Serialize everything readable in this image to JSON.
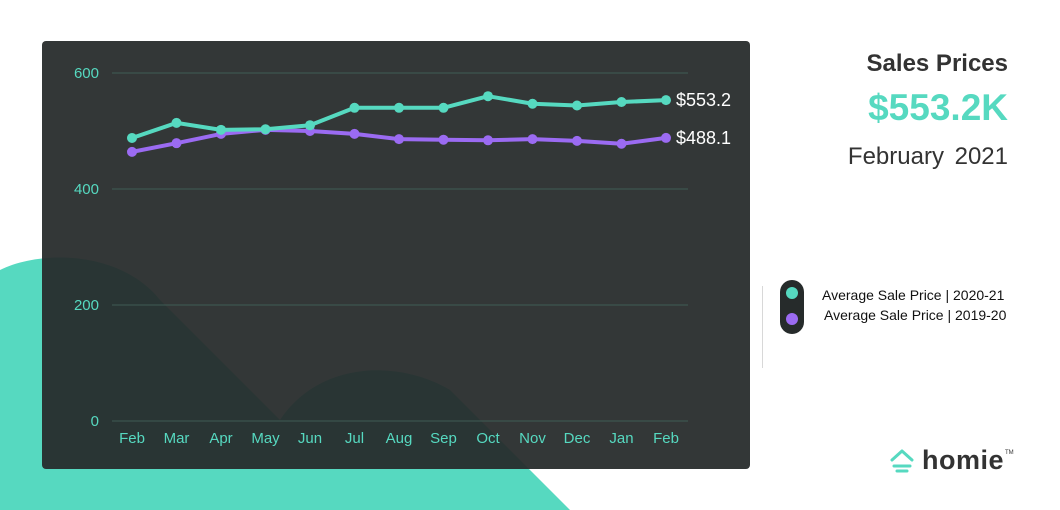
{
  "summary": {
    "title": "Sales Prices",
    "value": "$553.2K",
    "date": "February  2021"
  },
  "colors": {
    "accent_teal": "#56d9c0",
    "accent_purple": "#9b6bf2",
    "panel": "#262b2b"
  },
  "legend": {
    "items": [
      {
        "label": "Average Sale Price | 2020-21",
        "color": "#56d9c0"
      },
      {
        "label": "Average Sale Price | 2019-20",
        "color": "#9b6bf2"
      }
    ]
  },
  "brand": {
    "name": "homie",
    "mark": "TM",
    "icon": "house-icon"
  },
  "chart_data": {
    "type": "line",
    "categories": [
      "Feb",
      "Mar",
      "Apr",
      "May",
      "Jun",
      "Jul",
      "Aug",
      "Sep",
      "Oct",
      "Nov",
      "Dec",
      "Jan",
      "Feb"
    ],
    "series": [
      {
        "name": "Average Sale Price | 2020-21",
        "color": "#56d9c0",
        "values": [
          488,
          514,
          502,
          503,
          510,
          540,
          540,
          540,
          560,
          547,
          544,
          550,
          553.2
        ],
        "end_label": "$553.2"
      },
      {
        "name": "Average Sale Price | 2019-20",
        "color": "#9b6bf2",
        "values": [
          464,
          479,
          495,
          502,
          500,
          495,
          486,
          485,
          484,
          486,
          483,
          478,
          488.1
        ],
        "end_label": "$488.1"
      }
    ],
    "yticks": [
      0,
      200,
      400,
      600
    ],
    "ylim": [
      0,
      600
    ],
    "grid": true,
    "legend_position": "right"
  }
}
